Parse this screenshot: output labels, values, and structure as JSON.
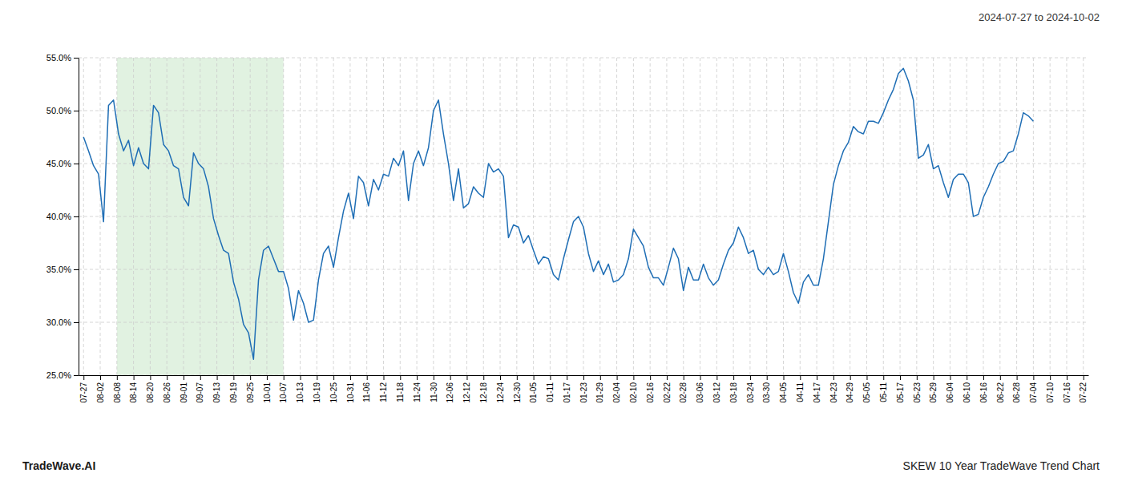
{
  "chart_data": {
    "type": "line",
    "values": [
      0.475,
      0.462,
      0.448,
      0.44,
      0.395,
      0.505,
      0.51,
      0.478,
      0.462,
      0.472,
      0.448,
      0.465,
      0.45,
      0.445,
      0.505,
      0.498,
      0.468,
      0.462,
      0.448,
      0.445,
      0.418,
      0.41,
      0.46,
      0.45,
      0.445,
      0.428,
      0.398,
      0.382,
      0.368,
      0.365,
      0.338,
      0.322,
      0.298,
      0.29,
      0.265,
      0.34,
      0.368,
      0.372,
      0.36,
      0.348,
      0.348,
      0.332,
      0.302,
      0.33,
      0.318,
      0.3,
      0.302,
      0.34,
      0.365,
      0.372,
      0.352,
      0.38,
      0.405,
      0.422,
      0.398,
      0.438,
      0.432,
      0.41,
      0.435,
      0.425,
      0.44,
      0.438,
      0.455,
      0.448,
      0.462,
      0.415,
      0.45,
      0.462,
      0.448,
      0.465,
      0.5,
      0.51,
      0.478,
      0.45,
      0.415,
      0.445,
      0.408,
      0.412,
      0.428,
      0.422,
      0.418,
      0.45,
      0.442,
      0.445,
      0.438,
      0.38,
      0.392,
      0.39,
      0.375,
      0.382,
      0.368,
      0.355,
      0.362,
      0.36,
      0.345,
      0.34,
      0.36,
      0.378,
      0.395,
      0.4,
      0.39,
      0.365,
      0.348,
      0.358,
      0.345,
      0.355,
      0.338,
      0.34,
      0.345,
      0.36,
      0.388,
      0.38,
      0.372,
      0.352,
      0.342,
      0.342,
      0.335,
      0.352,
      0.37,
      0.36,
      0.33,
      0.352,
      0.34,
      0.34,
      0.355,
      0.342,
      0.335,
      0.34,
      0.355,
      0.368,
      0.375,
      0.39,
      0.38,
      0.365,
      0.368,
      0.35,
      0.345,
      0.352,
      0.345,
      0.348,
      0.365,
      0.348,
      0.328,
      0.318,
      0.338,
      0.345,
      0.335,
      0.335,
      0.36,
      0.395,
      0.43,
      0.448,
      0.462,
      0.47,
      0.485,
      0.48,
      0.478,
      0.49,
      0.49,
      0.488,
      0.498,
      0.51,
      0.52,
      0.535,
      0.54,
      0.528,
      0.51,
      0.455,
      0.458,
      0.468,
      0.445,
      0.448,
      0.432,
      0.418,
      0.435,
      0.44,
      0.44,
      0.432,
      0.4,
      0.402,
      0.418,
      0.428,
      0.44,
      0.45,
      0.452,
      0.46,
      0.462,
      0.478,
      0.498,
      0.495,
      0.49
    ],
    "color": "#1f6eb5",
    "xlim": [
      -1,
      201
    ],
    "xticks": [
      {
        "value": 0,
        "label": "07-27"
      },
      {
        "value": 3.3333333333333335,
        "label": "08-02"
      },
      {
        "value": 6.666666666666667,
        "label": "08-08"
      },
      {
        "value": 10,
        "label": "08-14"
      },
      {
        "value": 13.333333333333334,
        "label": "08-20"
      },
      {
        "value": 16.666666666666668,
        "label": "08-26"
      },
      {
        "value": 20,
        "label": "09-01"
      },
      {
        "value": 23.333333333333336,
        "label": "09-07"
      },
      {
        "value": 26.666666666666668,
        "label": "09-13"
      },
      {
        "value": 30,
        "label": "09-19"
      },
      {
        "value": 33.333333333333336,
        "label": "09-25"
      },
      {
        "value": 36.66666666666667,
        "label": "10-01"
      },
      {
        "value": 40,
        "label": "10-07"
      },
      {
        "value": 43.333333333333336,
        "label": "10-13"
      },
      {
        "value": 46.66666666666667,
        "label": "10-19"
      },
      {
        "value": 50,
        "label": "10-25"
      },
      {
        "value": 53.333333333333336,
        "label": "10-31"
      },
      {
        "value": 56.66666666666667,
        "label": "11-06"
      },
      {
        "value": 60,
        "label": "11-12"
      },
      {
        "value": 63.333333333333336,
        "label": "11-18"
      },
      {
        "value": 66.66666666666667,
        "label": "11-24"
      },
      {
        "value": 70,
        "label": "11-30"
      },
      {
        "value": 73.33333333333334,
        "label": "12-06"
      },
      {
        "value": 76.66666666666667,
        "label": "12-12"
      },
      {
        "value": 80,
        "label": "12-18"
      },
      {
        "value": 83.33333333333334,
        "label": "12-24"
      },
      {
        "value": 86.66666666666667,
        "label": "12-30"
      },
      {
        "value": 90,
        "label": "01-05"
      },
      {
        "value": 93.33333333333334,
        "label": "01-11"
      },
      {
        "value": 96.66666666666667,
        "label": "01-17"
      },
      {
        "value": 100,
        "label": "01-23"
      },
      {
        "value": 103.33333333333334,
        "label": "01-29"
      },
      {
        "value": 106.66666666666667,
        "label": "02-04"
      },
      {
        "value": 110,
        "label": "02-10"
      },
      {
        "value": 113.33333333333334,
        "label": "02-16"
      },
      {
        "value": 116.66666666666667,
        "label": "02-22"
      },
      {
        "value": 120,
        "label": "02-28"
      },
      {
        "value": 123.33333333333334,
        "label": "03-06"
      },
      {
        "value": 126.66666666666667,
        "label": "03-12"
      },
      {
        "value": 130,
        "label": "03-18"
      },
      {
        "value": 133.33333333333334,
        "label": "03-24"
      },
      {
        "value": 136.66666666666669,
        "label": "03-30"
      },
      {
        "value": 140,
        "label": "04-05"
      },
      {
        "value": 143.33333333333334,
        "label": "04-11"
      },
      {
        "value": 146.66666666666669,
        "label": "04-17"
      },
      {
        "value": 150,
        "label": "04-23"
      },
      {
        "value": 153.33333333333334,
        "label": "04-29"
      },
      {
        "value": 156.66666666666669,
        "label": "05-05"
      },
      {
        "value": 160,
        "label": "05-11"
      },
      {
        "value": 163.33333333333334,
        "label": "05-17"
      },
      {
        "value": 166.66666666666669,
        "label": "05-23"
      },
      {
        "value": 170,
        "label": "05-29"
      },
      {
        "value": 173.33333333333334,
        "label": "06-04"
      },
      {
        "value": 176.66666666666669,
        "label": "06-10"
      },
      {
        "value": 180,
        "label": "06-16"
      },
      {
        "value": 183.33333333333334,
        "label": "06-22"
      },
      {
        "value": 186.66666666666669,
        "label": "06-28"
      },
      {
        "value": 190,
        "label": "07-04"
      },
      {
        "value": 193.33333333333334,
        "label": "07-10"
      },
      {
        "value": 196.66666666666669,
        "label": "07-16"
      },
      {
        "value": 200,
        "label": "07-22"
      }
    ],
    "ylim": [
      0.25,
      0.55
    ],
    "yticks": [
      {
        "value": 0.25,
        "label": "25.0%"
      },
      {
        "value": 0.3,
        "label": "30.0%"
      },
      {
        "value": 0.35,
        "label": "35.0%"
      },
      {
        "value": 0.4,
        "label": "40.0%"
      },
      {
        "value": 0.45,
        "label": "45.0%"
      },
      {
        "value": 0.5,
        "label": "50.0%"
      },
      {
        "value": 0.55,
        "label": "55.0%"
      }
    ],
    "grid": true,
    "shaded_region": {
      "x0": 6.666666666666667,
      "x1": 40,
      "color": "#d4ecd4"
    },
    "annotations": [
      "2024-07-27 to 2024-10-02",
      "TradeWave.AI",
      "SKEW 10 Year TradeWave Trend Chart"
    ]
  }
}
